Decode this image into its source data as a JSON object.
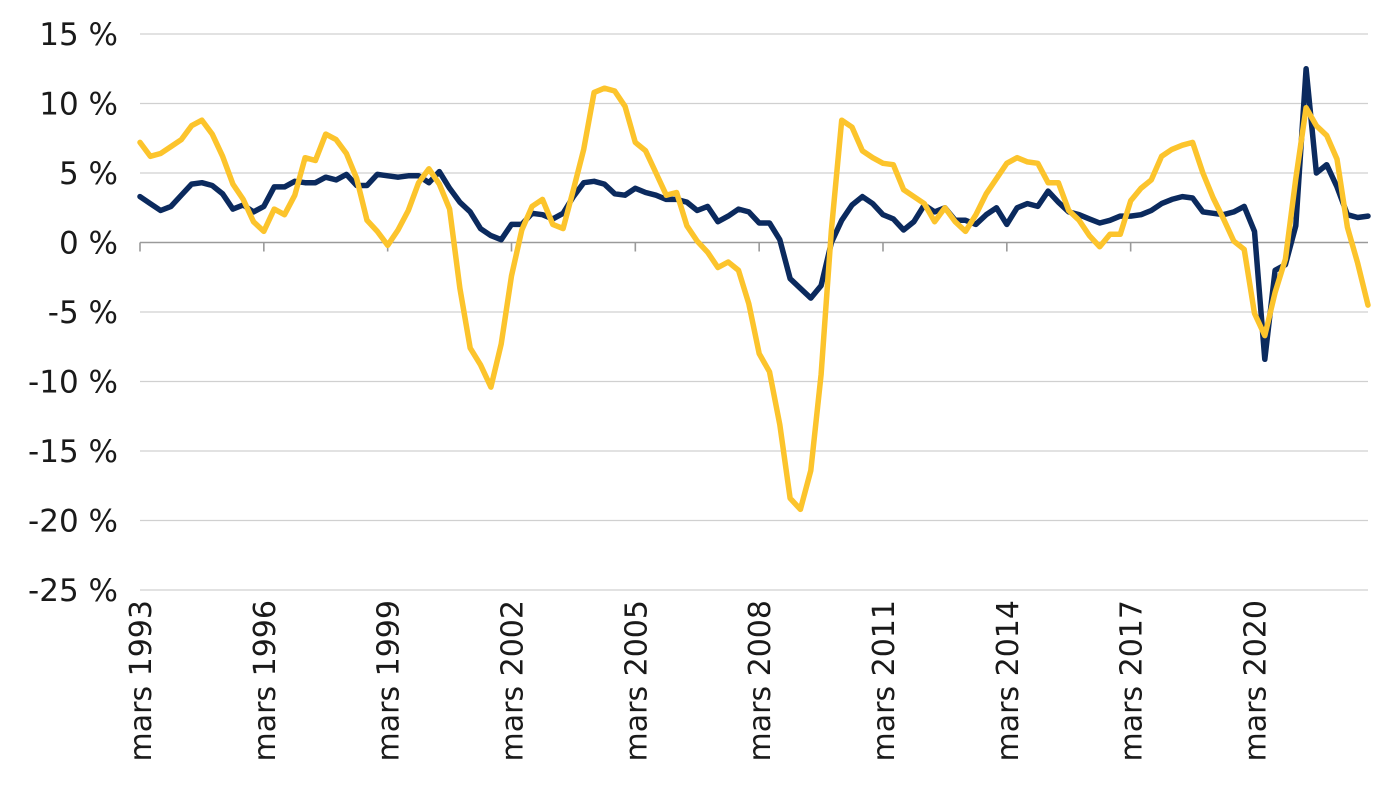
{
  "chart_data": {
    "type": "line",
    "title": "",
    "xlabel": "",
    "ylabel": "",
    "ylim": [
      -25,
      15
    ],
    "yticks": [
      15,
      10,
      5,
      0,
      -5,
      -10,
      -15,
      -20,
      -25
    ],
    "ytick_labels": [
      "15 %",
      "10 %",
      "5 %",
      "0 %",
      "-5 %",
      "-10 %",
      "-15 %",
      "-20 %",
      "-25 %"
    ],
    "x_range": [
      1993.0,
      2022.75
    ],
    "xtick_labels": [
      "mars 1993",
      "mars 1996",
      "mars 1999",
      "mars 2002",
      "mars 2005",
      "mars 2008",
      "mars 2011",
      "mars 2014",
      "mars 2017",
      "mars 2020"
    ],
    "xticks": [
      1993,
      1996,
      1999,
      2002,
      2005,
      2008,
      2011,
      2014,
      2017,
      2020
    ],
    "grid": "horizontal",
    "series": [
      {
        "color": "#0b2a5e",
        "x": [
          1993.0,
          1993.25,
          1993.5,
          1993.75,
          1994.0,
          1994.25,
          1994.5,
          1994.75,
          1995.0,
          1995.25,
          1995.5,
          1995.75,
          1996.0,
          1996.25,
          1996.5,
          1996.75,
          1997.0,
          1997.25,
          1997.5,
          1997.75,
          1998.0,
          1998.25,
          1998.5,
          1998.75,
          1999.0,
          1999.25,
          1999.5,
          1999.75,
          2000.0,
          2000.25,
          2000.5,
          2000.75,
          2001.0,
          2001.25,
          2001.5,
          2001.75,
          2002.0,
          2002.25,
          2002.5,
          2002.75,
          2003.0,
          2003.25,
          2003.5,
          2003.75,
          2004.0,
          2004.25,
          2004.5,
          2004.75,
          2005.0,
          2005.25,
          2005.5,
          2005.75,
          2006.0,
          2006.25,
          2006.5,
          2006.75,
          2007.0,
          2007.25,
          2007.5,
          2007.75,
          2008.0,
          2008.25,
          2008.5,
          2008.75,
          2009.0,
          2009.25,
          2009.5,
          2009.75,
          2010.0,
          2010.25,
          2010.5,
          2010.75,
          2011.0,
          2011.25,
          2011.5,
          2011.75,
          2012.0,
          2012.25,
          2012.5,
          2012.75,
          2013.0,
          2013.25,
          2013.5,
          2013.75,
          2014.0,
          2014.25,
          2014.5,
          2014.75,
          2015.0,
          2015.25,
          2015.5,
          2015.75,
          2016.0,
          2016.25,
          2016.5,
          2016.75,
          2017.0,
          2017.25,
          2017.5,
          2017.75,
          2018.0,
          2018.25,
          2018.5,
          2018.75,
          2019.0,
          2019.25,
          2019.5,
          2019.75,
          2020.0,
          2020.25,
          2020.5,
          2020.75,
          2021.0,
          2021.25,
          2021.5,
          2021.75,
          2022.0,
          2022.25,
          2022.5,
          2022.75
        ],
        "values": [
          3.3,
          2.8,
          2.3,
          2.6,
          3.4,
          4.2,
          4.3,
          4.1,
          3.5,
          2.4,
          2.7,
          2.2,
          2.6,
          4.0,
          4.0,
          4.4,
          4.3,
          4.3,
          4.7,
          4.5,
          4.9,
          4.1,
          4.1,
          4.9,
          4.8,
          4.7,
          4.8,
          4.8,
          4.3,
          5.1,
          3.9,
          2.9,
          2.2,
          1.0,
          0.5,
          0.2,
          1.3,
          1.3,
          2.1,
          2.0,
          1.7,
          2.1,
          3.3,
          4.3,
          4.4,
          4.2,
          3.5,
          3.4,
          3.9,
          3.6,
          3.4,
          3.1,
          3.1,
          2.9,
          2.3,
          2.6,
          1.5,
          1.9,
          2.4,
          2.2,
          1.4,
          1.4,
          0.2,
          -2.6,
          -3.3,
          -4.0,
          -3.1,
          0.0,
          1.6,
          2.7,
          3.3,
          2.8,
          2.0,
          1.7,
          0.9,
          1.5,
          2.7,
          2.2,
          2.5,
          1.6,
          1.6,
          1.3,
          2.0,
          2.5,
          1.3,
          2.5,
          2.8,
          2.6,
          3.7,
          2.9,
          2.2,
          2.0,
          1.7,
          1.4,
          1.6,
          1.9,
          1.9,
          2.0,
          2.3,
          2.8,
          3.1,
          3.3,
          3.2,
          2.2,
          2.1,
          2.0,
          2.2,
          2.6,
          0.8,
          -8.4,
          -2.0,
          -1.6,
          1.2,
          12.5,
          5.0,
          5.6,
          4.0,
          2.0,
          1.8,
          1.9
        ]
      },
      {
        "color": "#fcc42c",
        "x": [
          1993.0,
          1993.25,
          1993.5,
          1993.75,
          1994.0,
          1994.25,
          1994.5,
          1994.75,
          1995.0,
          1995.25,
          1995.5,
          1995.75,
          1996.0,
          1996.25,
          1996.5,
          1996.75,
          1997.0,
          1997.25,
          1997.5,
          1997.75,
          1998.0,
          1998.25,
          1998.5,
          1998.75,
          1999.0,
          1999.25,
          1999.5,
          1999.75,
          2000.0,
          2000.25,
          2000.5,
          2000.75,
          2001.0,
          2001.25,
          2001.5,
          2001.75,
          2002.0,
          2002.25,
          2002.5,
          2002.75,
          2003.0,
          2003.25,
          2003.5,
          2003.75,
          2004.0,
          2004.25,
          2004.5,
          2004.75,
          2005.0,
          2005.25,
          2005.5,
          2005.75,
          2006.0,
          2006.25,
          2006.5,
          2006.75,
          2007.0,
          2007.25,
          2007.5,
          2007.75,
          2008.0,
          2008.25,
          2008.5,
          2008.75,
          2009.0,
          2009.25,
          2009.5,
          2009.75,
          2010.0,
          2010.25,
          2010.5,
          2010.75,
          2011.0,
          2011.25,
          2011.5,
          2011.75,
          2012.0,
          2012.25,
          2012.5,
          2012.75,
          2013.0,
          2013.25,
          2013.5,
          2013.75,
          2014.0,
          2014.25,
          2014.5,
          2014.75,
          2015.0,
          2015.25,
          2015.5,
          2015.75,
          2016.0,
          2016.25,
          2016.5,
          2016.75,
          2017.0,
          2017.25,
          2017.5,
          2017.75,
          2018.0,
          2018.25,
          2018.5,
          2018.75,
          2019.0,
          2019.25,
          2019.5,
          2019.75,
          2020.0,
          2020.25,
          2020.5,
          2020.75,
          2021.0,
          2021.25,
          2021.5,
          2021.75,
          2022.0,
          2022.25,
          2022.5,
          2022.75
        ],
        "values": [
          7.2,
          6.2,
          6.4,
          6.9,
          7.4,
          8.4,
          8.8,
          7.8,
          6.2,
          4.2,
          3.1,
          1.5,
          0.8,
          2.4,
          2.0,
          3.4,
          6.1,
          5.9,
          7.8,
          7.4,
          6.4,
          4.6,
          1.6,
          0.8,
          -0.2,
          0.9,
          2.3,
          4.3,
          5.3,
          4.2,
          2.4,
          -3.3,
          -7.6,
          -8.8,
          -10.4,
          -7.3,
          -2.4,
          0.9,
          2.6,
          3.1,
          1.3,
          1.0,
          3.8,
          6.7,
          10.8,
          11.1,
          10.9,
          9.8,
          7.2,
          6.6,
          5.0,
          3.4,
          3.6,
          1.2,
          0.1,
          -0.7,
          -1.8,
          -1.4,
          -2.0,
          -4.4,
          -8.0,
          -9.3,
          -13.1,
          -18.4,
          -19.2,
          -16.4,
          -9.5,
          0.9,
          8.8,
          8.3,
          6.6,
          6.1,
          5.7,
          5.6,
          3.8,
          3.3,
          2.8,
          1.5,
          2.5,
          1.5,
          0.8,
          2.0,
          3.5,
          4.6,
          5.7,
          6.1,
          5.8,
          5.7,
          4.3,
          4.3,
          2.3,
          1.6,
          0.5,
          -0.3,
          0.6,
          0.6,
          3.0,
          3.9,
          4.5,
          6.2,
          6.7,
          7.0,
          7.2,
          5.0,
          3.2,
          1.7,
          0.1,
          -0.5,
          -5.1,
          -6.7,
          -3.6,
          -1.2,
          4.6,
          9.7,
          8.4,
          7.7,
          6.0,
          1.1,
          -1.5,
          -4.5
        ]
      }
    ]
  }
}
